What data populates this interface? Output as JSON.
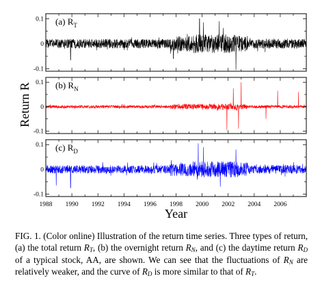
{
  "chart_data": [
    {
      "type": "line",
      "panel_label": "(a)",
      "series_symbol": "R",
      "series_subscript": "T",
      "color": "#000000",
      "x_range": [
        1988,
        2008
      ],
      "ylim": [
        -0.11,
        0.12
      ],
      "y_ticks": [
        {
          "value": 0.1,
          "label": "0.1"
        },
        {
          "value": 0,
          "label": "0"
        },
        {
          "value": -0.1,
          "label": "-0.1"
        }
      ],
      "amplitude": {
        "base": 0.025,
        "spikes": [
          {
            "year": 1999.8,
            "value": 0.1
          },
          {
            "year": 2000.1,
            "value": 0.085
          },
          {
            "year": 2001.3,
            "value": 0.09
          },
          {
            "year": 2002.6,
            "value": -0.105
          },
          {
            "year": 1997.8,
            "value": -0.06
          },
          {
            "year": 1989.9,
            "value": -0.065
          }
        ]
      }
    },
    {
      "type": "line",
      "panel_label": "(b)",
      "series_symbol": "R",
      "series_subscript": "N",
      "color": "#ff0000",
      "x_range": [
        1988,
        2008
      ],
      "ylim": [
        -0.11,
        0.12
      ],
      "y_ticks": [
        {
          "value": 0.1,
          "label": "0.1"
        },
        {
          "value": 0,
          "label": "0"
        },
        {
          "value": -0.1,
          "label": "-0.1"
        }
      ],
      "amplitude": {
        "base": 0.008,
        "spikes": [
          {
            "year": 2003.0,
            "value": 0.1
          },
          {
            "year": 2001.9,
            "value": -0.095
          },
          {
            "year": 2002.8,
            "value": -0.09
          },
          {
            "year": 2002.4,
            "value": 0.075
          },
          {
            "year": 2005.8,
            "value": 0.065
          },
          {
            "year": 2007.4,
            "value": 0.06
          },
          {
            "year": 2004.9,
            "value": -0.05
          }
        ]
      }
    },
    {
      "type": "line",
      "panel_label": "(c)",
      "series_symbol": "R",
      "series_subscript": "D",
      "color": "#0000ff",
      "x_range": [
        1988,
        2008
      ],
      "ylim": [
        -0.11,
        0.12
      ],
      "y_ticks": [
        {
          "value": 0.1,
          "label": "0.1"
        },
        {
          "value": 0,
          "label": "0"
        },
        {
          "value": -0.1,
          "label": "-0.1"
        }
      ],
      "amplitude": {
        "base": 0.022,
        "spikes": [
          {
            "year": 1999.7,
            "value": 0.105
          },
          {
            "year": 2000.1,
            "value": 0.09
          },
          {
            "year": 2001.4,
            "value": -0.07
          },
          {
            "year": 1989.9,
            "value": -0.075
          },
          {
            "year": 1988.8,
            "value": -0.065
          },
          {
            "year": 2002.6,
            "value": 0.08
          }
        ]
      }
    }
  ],
  "x_ticks": [
    "1988",
    "1990",
    "1992",
    "1994",
    "1996",
    "1998",
    "2000",
    "2002",
    "2004",
    "2006"
  ],
  "x_title": "Year",
  "y_title": "Return R",
  "caption": {
    "lines": [
      "FIG. 1. (Color online) Illustration of the return time series.",
      "Three types of return, (a) the total return R_T, (b) the overnight return",
      "R_N, and (c) the daytime return R_D of a typical stock, AA, are shown.",
      "We can see that the fluctuations of R_N are relatively weaker, and the",
      "curve of R_D is more similar to that of R_T."
    ]
  }
}
